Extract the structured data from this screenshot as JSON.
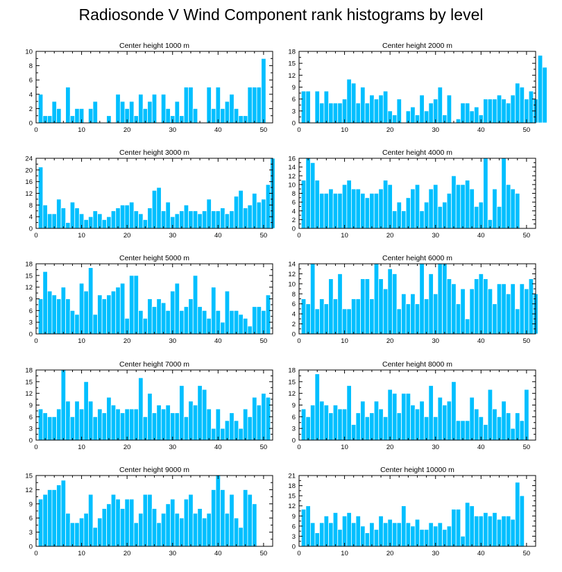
{
  "title": "Radiosonde V Wind Component rank histograms by level",
  "colors": {
    "bar": "#00bfff",
    "bar_edge": "#ffffff",
    "axis": "#000000"
  },
  "chart_data": [
    {
      "type": "bar",
      "title": "Center height 1000 m",
      "ylim": [
        0,
        10
      ],
      "yticks": [
        0,
        2,
        4,
        6,
        8,
        10
      ],
      "xlim": [
        0,
        52
      ],
      "xticks": [
        0,
        10,
        20,
        30,
        40,
        50
      ],
      "values": [
        4,
        1,
        1,
        3,
        2,
        0,
        5,
        1,
        2,
        2,
        0,
        2,
        3,
        0,
        0,
        1,
        0,
        4,
        3,
        2,
        3,
        1,
        4,
        2,
        3,
        4,
        0,
        4,
        2,
        1,
        3,
        1,
        5,
        5,
        2,
        0,
        0,
        5,
        2,
        5,
        2,
        3,
        4,
        2,
        1,
        1,
        5,
        5,
        5,
        9
      ]
    },
    {
      "type": "bar",
      "title": "Center height 2000 m",
      "ylim": [
        0,
        18
      ],
      "yticks": [
        0,
        3,
        6,
        9,
        12,
        15,
        18
      ],
      "xlim": [
        0,
        52
      ],
      "xticks": [
        0,
        10,
        20,
        30,
        40,
        50
      ],
      "values": [
        8,
        8,
        0,
        8,
        5,
        8,
        5,
        5,
        5,
        6,
        11,
        10,
        5,
        9,
        5,
        7,
        6,
        7,
        8,
        3,
        2,
        6,
        0,
        3,
        4,
        2,
        7,
        3,
        5,
        6,
        9,
        2,
        7,
        0,
        1,
        5,
        5,
        3,
        4,
        2,
        6,
        6,
        6,
        7,
        6,
        5,
        7,
        10,
        9,
        6,
        8,
        6,
        17,
        14
      ]
    },
    {
      "type": "bar",
      "title": "Center height 3000 m",
      "ylim": [
        0,
        24
      ],
      "yticks": [
        0,
        4,
        8,
        12,
        16,
        20,
        24
      ],
      "xlim": [
        0,
        52
      ],
      "xticks": [
        0,
        10,
        20,
        30,
        40,
        50
      ],
      "values": [
        21,
        8,
        5,
        5,
        10,
        7,
        2,
        9,
        7,
        5,
        3,
        4,
        6,
        5,
        3,
        4,
        6,
        7,
        8,
        8,
        9,
        6,
        5,
        3,
        7,
        13,
        14,
        6,
        9,
        4,
        5,
        6,
        8,
        6,
        6,
        5,
        6,
        10,
        6,
        6,
        7,
        5,
        6,
        11,
        13,
        7,
        8,
        12,
        9,
        10,
        15,
        24
      ]
    },
    {
      "type": "bar",
      "title": "Center height 4000 m",
      "ylim": [
        0,
        16
      ],
      "yticks": [
        0,
        2,
        4,
        6,
        8,
        10,
        12,
        14,
        16
      ],
      "xlim": [
        0,
        52
      ],
      "xticks": [
        0,
        10,
        20,
        30,
        40,
        50
      ],
      "values": [
        11,
        16,
        15,
        11,
        8,
        8,
        9,
        8,
        8,
        10,
        11,
        9,
        9,
        8,
        7,
        8,
        8,
        9,
        11,
        10,
        4,
        6,
        4,
        7,
        9,
        10,
        4,
        6,
        9,
        10,
        5,
        6,
        8,
        12,
        10,
        10,
        11,
        9,
        5,
        6,
        16,
        2,
        9,
        5,
        16,
        10,
        9,
        8
      ]
    },
    {
      "type": "bar",
      "title": "Center height 5000 m",
      "ylim": [
        0,
        18
      ],
      "yticks": [
        0,
        3,
        6,
        9,
        12,
        15,
        18
      ],
      "xlim": [
        0,
        52
      ],
      "xticks": [
        0,
        10,
        20,
        30,
        40,
        50
      ],
      "values": [
        9,
        16,
        11,
        10,
        9,
        12,
        9,
        6,
        5,
        13,
        11,
        17,
        5,
        10,
        9,
        10,
        11,
        12,
        13,
        4,
        15,
        15,
        6,
        4,
        9,
        7,
        9,
        8,
        6,
        11,
        13,
        6,
        7,
        9,
        15,
        7,
        6,
        4,
        12,
        6,
        3,
        11,
        6,
        6,
        5,
        4,
        2,
        7,
        7,
        6,
        10
      ]
    },
    {
      "type": "bar",
      "title": "Center height 6000 m",
      "ylim": [
        0,
        14
      ],
      "yticks": [
        0,
        2,
        4,
        6,
        8,
        10,
        12,
        14
      ],
      "xlim": [
        0,
        52
      ],
      "xticks": [
        0,
        10,
        20,
        30,
        40,
        50
      ],
      "values": [
        7,
        6,
        14,
        5,
        7,
        6,
        11,
        7,
        12,
        5,
        5,
        7,
        7,
        11,
        11,
        7,
        14,
        11,
        9,
        13,
        12,
        5,
        8,
        6,
        8,
        6,
        14,
        7,
        12,
        8,
        14,
        14,
        11,
        10,
        6,
        9,
        3,
        9,
        11,
        12,
        11,
        9,
        6,
        10,
        10,
        8,
        10,
        5,
        10,
        9,
        11,
        8
      ]
    },
    {
      "type": "bar",
      "title": "Center height 7000 m",
      "ylim": [
        0,
        18
      ],
      "yticks": [
        0,
        3,
        6,
        9,
        12,
        15,
        18
      ],
      "xlim": [
        0,
        52
      ],
      "xticks": [
        0,
        10,
        20,
        30,
        40,
        50
      ],
      "values": [
        8,
        7,
        6,
        6,
        8,
        18,
        10,
        6,
        10,
        8,
        15,
        10,
        6,
        8,
        7,
        11,
        9,
        8,
        7,
        8,
        8,
        8,
        16,
        6,
        12,
        7,
        9,
        8,
        9,
        7,
        7,
        14,
        6,
        10,
        9,
        14,
        13,
        8,
        3,
        8,
        3,
        5,
        7,
        5,
        3,
        8,
        6,
        11,
        9,
        12,
        11
      ]
    },
    {
      "type": "bar",
      "title": "Center height 8000 m",
      "ylim": [
        0,
        18
      ],
      "yticks": [
        0,
        3,
        6,
        9,
        12,
        15,
        18
      ],
      "xlim": [
        0,
        52
      ],
      "xticks": [
        0,
        10,
        20,
        30,
        40,
        50
      ],
      "values": [
        8,
        6,
        9,
        17,
        10,
        9,
        7,
        9,
        8,
        8,
        14,
        4,
        7,
        10,
        6,
        7,
        10,
        8,
        6,
        13,
        12,
        7,
        12,
        12,
        9,
        8,
        10,
        6,
        14,
        6,
        11,
        9,
        10,
        15,
        5,
        5,
        5,
        11,
        8,
        6,
        4,
        13,
        8,
        6,
        10,
        7,
        3,
        7,
        5,
        13
      ]
    },
    {
      "type": "bar",
      "title": "Center height 9000 m",
      "ylim": [
        0,
        15
      ],
      "yticks": [
        0,
        3,
        6,
        9,
        12,
        15
      ],
      "xlim": [
        0,
        52
      ],
      "xticks": [
        0,
        10,
        20,
        30,
        40,
        50
      ],
      "values": [
        10,
        11,
        12,
        12,
        13,
        14,
        7,
        5,
        5,
        6,
        7,
        11,
        4,
        6,
        8,
        9,
        11,
        10,
        8,
        10,
        10,
        5,
        7,
        11,
        11,
        8,
        5,
        7,
        9,
        10,
        7,
        6,
        10,
        11,
        7,
        8,
        6,
        7,
        12,
        15,
        12,
        7,
        11,
        6,
        4,
        12,
        11,
        9
      ]
    },
    {
      "type": "bar",
      "title": "Center height 10000 m",
      "ylim": [
        0,
        21
      ],
      "yticks": [
        0,
        3,
        6,
        9,
        12,
        15,
        18,
        21
      ],
      "xlim": [
        0,
        52
      ],
      "xticks": [
        0,
        10,
        20,
        30,
        40,
        50
      ],
      "values": [
        11,
        12,
        7,
        4,
        7,
        9,
        7,
        10,
        5,
        9,
        10,
        7,
        9,
        6,
        4,
        7,
        5,
        9,
        7,
        8,
        7,
        7,
        12,
        7,
        6,
        8,
        5,
        5,
        7,
        6,
        7,
        5,
        6,
        11,
        11,
        3,
        13,
        12,
        9,
        9,
        10,
        9,
        10,
        8,
        9,
        9,
        8,
        19,
        15
      ]
    }
  ]
}
